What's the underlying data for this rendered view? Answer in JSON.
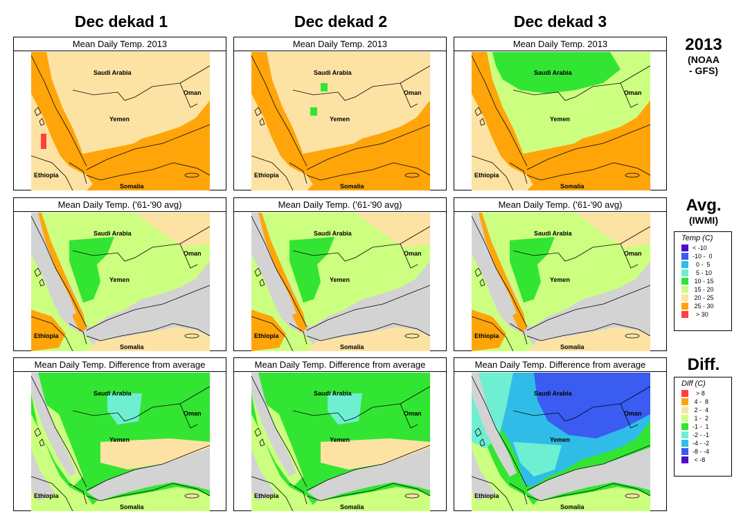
{
  "columns": [
    {
      "label": "Dec dekad 1"
    },
    {
      "label": "Dec dekad 2"
    },
    {
      "label": "Dec dekad 3"
    }
  ],
  "rows": [
    {
      "title": "Mean Daily Temp. 2013",
      "label_big": "2013",
      "label_small": "(NOAA\n- GFS)"
    },
    {
      "title": "Mean Daily Temp. ('61-'90 avg)",
      "label_big": "Avg.",
      "label_small": "(IWMI)"
    },
    {
      "title": "Mean Daily Temp. Difference from average",
      "label_big": "Diff.",
      "label_small": ""
    }
  ],
  "map_labels": {
    "saudi": "Saudi Arabia",
    "oman": "Oman",
    "yemen": "Yemen",
    "ethiopia": "Ethiopia",
    "somalia": "Somalia"
  },
  "temp_legend": {
    "title": "Temp (C)",
    "items": [
      {
        "label": "< -10",
        "color": "#4b0fc8"
      },
      {
        "label": "-10 -  0",
        "color": "#3a5cf0"
      },
      {
        "label": "  0 -  5",
        "color": "#2fbde8"
      },
      {
        "label": "  5 - 10",
        "color": "#6fefd2"
      },
      {
        "label": " 10 - 15",
        "color": "#33e533"
      },
      {
        "label": " 15 - 20",
        "color": "#ccff80"
      },
      {
        "label": " 20 - 25",
        "color": "#fde3a3"
      },
      {
        "label": " 25 - 30",
        "color": "#ffa50a"
      },
      {
        "label": "  > 30",
        "color": "#ff4040"
      }
    ]
  },
  "diff_legend": {
    "title": "Diff (C)",
    "items": [
      {
        "label": "  > 8",
        "color": "#ff4040"
      },
      {
        "label": " 4 -  8",
        "color": "#ffa50a"
      },
      {
        "label": " 2 -  4",
        "color": "#fde3a3"
      },
      {
        "label": " 1 -  2",
        "color": "#ccff80"
      },
      {
        "label": "-1 -  1",
        "color": "#33e533"
      },
      {
        "label": "-2 - -1",
        "color": "#6fefd2"
      },
      {
        "label": "-4 - -2",
        "color": "#2fbde8"
      },
      {
        "label": "-8 - -4",
        "color": "#3a5cf0"
      },
      {
        "label": " < -8",
        "color": "#4b0fc8"
      }
    ]
  },
  "colors": {
    "ocean_avg": "#d3d3d3",
    "hot": "#ffa50a",
    "warm": "#fde3a3",
    "mild": "#ccff80",
    "cool": "#33e533",
    "aqua": "#6fefd2",
    "cyan": "#2fbde8",
    "blue": "#3a5cf0",
    "red": "#ff4040"
  }
}
